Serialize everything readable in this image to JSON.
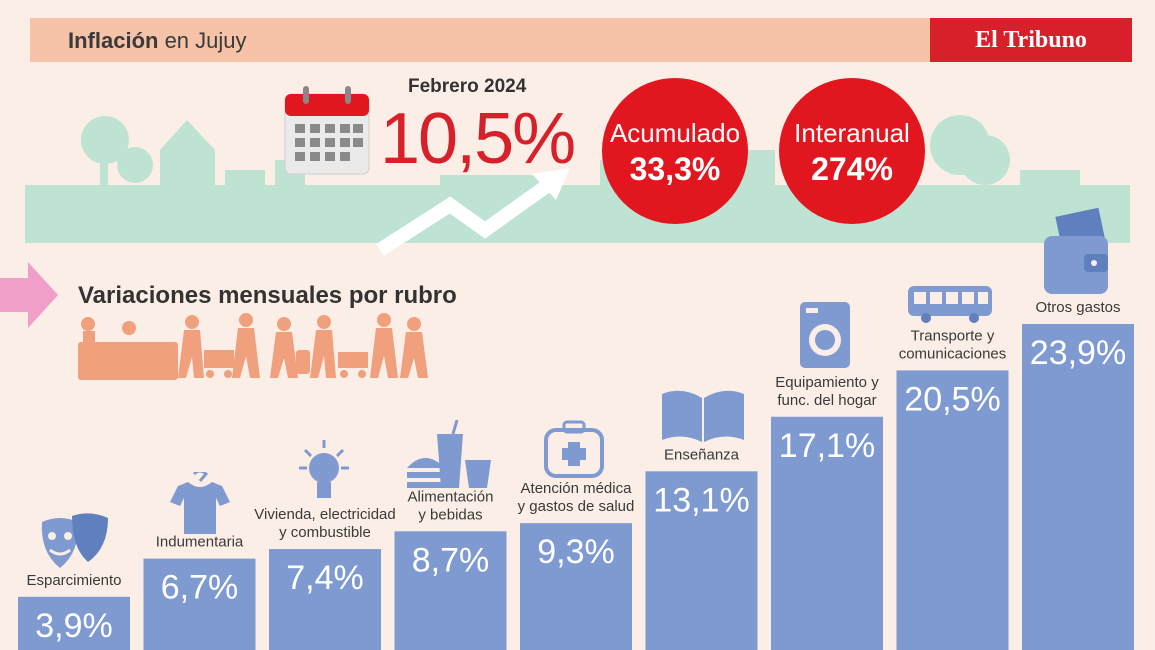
{
  "header": {
    "title_bold": "Inflación",
    "title_rest": " en Jujuy",
    "brand": "El Tribuno"
  },
  "headline": {
    "period": "Febrero 2024",
    "monthly": "10,5%"
  },
  "cumulative": {
    "label": "Acumulado",
    "value": "33,3%"
  },
  "yearly": {
    "label": "Interanual",
    "value": "274%"
  },
  "section_title": "Variaciones mensuales por rubro",
  "colors": {
    "bar": "#7e9ad1",
    "red": "#e1161f",
    "header": "#f6c3a8",
    "skyline": "#bfe3d2",
    "people": "#f1a07d"
  },
  "chart_data": {
    "type": "bar",
    "title": "Variaciones mensuales por rubro",
    "categories": [
      "Esparcimiento",
      "Indumentaria",
      "Vivienda, electricidad y combustible",
      "Alimentación y bebidas",
      "Atención médica y gastos de salud",
      "Enseñanza",
      "Equipamiento y func. del hogar",
      "Transporte y comunicaciones",
      "Otros gastos"
    ],
    "values": [
      3.9,
      6.7,
      7.4,
      8.7,
      9.3,
      13.1,
      17.1,
      20.5,
      23.9
    ],
    "value_labels": [
      "3,9%",
      "6,7%",
      "7,4%",
      "8,7%",
      "9,3%",
      "13,1%",
      "17,1%",
      "20,5%",
      "23,9%"
    ],
    "icons": [
      "theater-masks-icon",
      "shirt-icon",
      "lightbulb-icon",
      "fast-food-icon",
      "first-aid-kit-icon",
      "book-icon",
      "washing-machine-icon",
      "bus-icon",
      "wallet-icon"
    ]
  }
}
